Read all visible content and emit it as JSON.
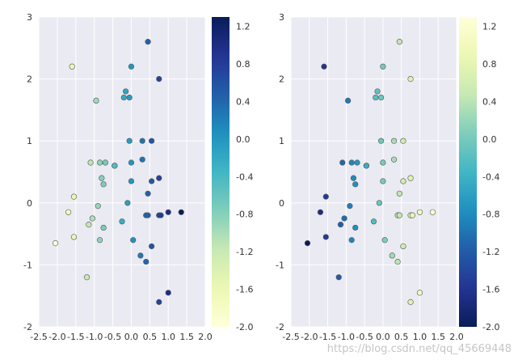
{
  "chart_data": [
    {
      "type": "scatter",
      "title": "",
      "xlabel": "",
      "ylabel": "",
      "xlim": [
        -2.5,
        2.0
      ],
      "ylim": [
        -2,
        3
      ],
      "xticks": [
        "-2.5",
        "-2.0",
        "-1.5",
        "-1.0",
        "-0.5",
        "0.0",
        "0.5",
        "1.0",
        "1.5",
        "2.0"
      ],
      "yticks": [
        "-2",
        "-1",
        "0",
        "1",
        "2",
        "3"
      ],
      "grid": true,
      "colormap": "YlGnBu",
      "color_by": "x",
      "colorbar": {
        "range": [
          -2.0,
          1.3
        ],
        "ticks": [
          "-2.0",
          "-1.6",
          "-1.2",
          "-0.8",
          "-0.4",
          "0.0",
          "0.4",
          "0.8",
          "1.2"
        ]
      },
      "x": [
        0.45,
        0.0,
        -1.6,
        0.75,
        -0.95,
        -0.15,
        -0.2,
        -0.05,
        0.3,
        -0.05,
        0.55,
        0.0,
        0.75,
        0.3,
        -1.1,
        -0.85,
        -0.7,
        0.55,
        -0.45,
        0.0,
        -0.45,
        0.75,
        -1.55,
        0.45,
        -0.8,
        -0.9,
        -1.7,
        -0.75,
        1.0,
        1.35,
        0.4,
        -1.05,
        0.45,
        0.8,
        -0.25,
        -0.1,
        -1.15,
        -0.75,
        -1.55,
        -2.05,
        -0.85,
        0.05,
        0.55,
        0.25,
        0.4,
        -1.2,
        1.0,
        0.75
      ],
      "y": [
        2.6,
        2.2,
        2.2,
        2.0,
        1.65,
        1.8,
        1.7,
        1.7,
        1.0,
        1.0,
        1.0,
        0.65,
        0.4,
        0.7,
        0.65,
        0.65,
        0.65,
        0.35,
        0.6,
        0.35,
        0.6,
        -0.2,
        0.1,
        0.15,
        0.4,
        -0.05,
        -0.15,
        0.3,
        -0.15,
        -0.15,
        -0.2,
        -0.25,
        -0.2,
        -0.2,
        -0.3,
        0.0,
        -0.35,
        -0.4,
        -0.55,
        -0.65,
        -0.6,
        -0.6,
        -0.7,
        -0.85,
        -0.95,
        -1.2,
        -1.45,
        -1.6
      ]
    },
    {
      "type": "scatter",
      "title": "",
      "xlabel": "",
      "ylabel": "",
      "xlim": [
        -2.5,
        2.0
      ],
      "ylim": [
        -2,
        3
      ],
      "xticks": [
        "-2.5",
        "-2.0",
        "-1.5",
        "-1.0",
        "-0.5",
        "0.0",
        "0.5",
        "1.0",
        "1.5",
        "2.0"
      ],
      "yticks": [
        "-2",
        "-1",
        "0",
        "1",
        "2",
        "3"
      ],
      "grid": true,
      "colormap": "YlGnBu (reversed)",
      "color_by": "x",
      "colorbar": {
        "range": [
          -2.0,
          1.3
        ],
        "ticks": [
          "-2.0",
          "-1.6",
          "-1.2",
          "-0.8",
          "-0.4",
          "0.0",
          "0.4",
          "0.8",
          "1.2"
        ]
      },
      "x": [
        0.45,
        0.0,
        -1.6,
        0.75,
        -0.95,
        -0.15,
        -0.2,
        -0.05,
        0.3,
        -0.05,
        0.55,
        0.0,
        0.75,
        0.3,
        -1.1,
        -0.85,
        -0.7,
        0.55,
        -0.45,
        0.0,
        -0.45,
        0.75,
        -1.55,
        0.45,
        -0.8,
        -0.9,
        -1.7,
        -0.75,
        1.0,
        1.35,
        0.4,
        -1.05,
        0.45,
        0.8,
        -0.25,
        -0.1,
        -1.15,
        -0.75,
        -1.55,
        -2.05,
        -0.85,
        0.05,
        0.55,
        0.25,
        0.4,
        -1.2,
        1.0,
        0.75
      ],
      "y": [
        2.6,
        2.2,
        2.2,
        2.0,
        1.65,
        1.8,
        1.7,
        1.7,
        1.0,
        1.0,
        1.0,
        0.65,
        0.4,
        0.7,
        0.65,
        0.65,
        0.65,
        0.35,
        0.6,
        0.35,
        0.6,
        -0.2,
        0.1,
        0.15,
        0.4,
        -0.05,
        -0.15,
        0.3,
        -0.15,
        -0.15,
        -0.2,
        -0.25,
        -0.2,
        -0.2,
        -0.3,
        0.0,
        -0.35,
        -0.4,
        -0.55,
        -0.65,
        -0.6,
        -0.6,
        -0.7,
        -0.85,
        -0.95,
        -1.2,
        -1.45,
        -1.6
      ]
    }
  ],
  "watermark": "https://blog.csdn.net/qq_45669448",
  "colors": {
    "axes_bg": "#eaeaf2",
    "grid": "#ffffff",
    "cmap_stops": [
      "#ffffd9",
      "#edf8b1",
      "#c7e9b4",
      "#7fcdbb",
      "#41b6c4",
      "#1d91c0",
      "#225ea8",
      "#253494",
      "#081d58"
    ]
  }
}
